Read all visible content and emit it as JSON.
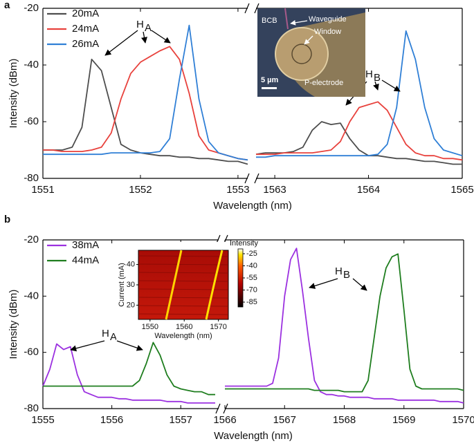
{
  "chart_data": [
    {
      "type": "line",
      "panel": "a",
      "xlabel": "Wavelength (nm)",
      "ylabel": "Intensity (dBm)",
      "ylim": [
        -80,
        -20
      ],
      "yticks": [
        -80,
        -60,
        -40,
        -20
      ],
      "x_segments": [
        {
          "xlim": [
            1551,
            1553.1
          ],
          "xticks": [
            1551,
            1552,
            1553
          ]
        },
        {
          "xlim": [
            1562.8,
            1565
          ],
          "xticks": [
            1563,
            1564,
            1565
          ]
        }
      ],
      "legend": "upper left",
      "x": [
        1551,
        1551.1,
        1551.2,
        1551.3,
        1551.4,
        1551.5,
        1551.6,
        1551.7,
        1551.8,
        1551.9,
        1552,
        1552.1,
        1552.2,
        1552.3,
        1552.4,
        1552.5,
        1552.6,
        1552.7,
        1552.8,
        1552.9,
        1553,
        1553.1,
        1562.8,
        1562.9,
        1563,
        1563.1,
        1563.2,
        1563.3,
        1563.4,
        1563.5,
        1563.6,
        1563.7,
        1563.8,
        1563.9,
        1564,
        1564.1,
        1564.2,
        1564.3,
        1564.4,
        1564.5,
        1564.6,
        1564.7,
        1564.8,
        1564.9,
        1565
      ],
      "series": [
        {
          "name": "20mA",
          "color": "#4d4d4d",
          "values": [
            -70,
            -70,
            -70,
            -69,
            -62,
            -38,
            -42,
            -55,
            -68,
            -70,
            -71,
            -71.5,
            -72,
            -72,
            -72.5,
            -72.5,
            -73,
            -73,
            -73.5,
            -74,
            -74,
            -75,
            -71.5,
            -71,
            -71,
            -71,
            -70.5,
            -69,
            -63,
            -60,
            -61,
            -60.5,
            -66,
            -70,
            -72,
            -72,
            -72.5,
            -73,
            -73,
            -73.5,
            -74,
            -74,
            -74.5,
            -75,
            -75
          ]
        },
        {
          "name": "24mA",
          "color": "#e8413c",
          "values": [
            -70,
            -70,
            -70.5,
            -70.5,
            -70.5,
            -70,
            -69,
            -64,
            -52,
            -43,
            -39,
            -37,
            -35,
            -33.5,
            -38,
            -50,
            -65,
            -70,
            -71,
            -72,
            -73,
            -73.5,
            -71.5,
            -71.5,
            -71.5,
            -71,
            -71,
            -71,
            -71,
            -70.5,
            -70,
            -67,
            -60,
            -55,
            -54,
            -53,
            -56,
            -62,
            -68,
            -71,
            -72,
            -72,
            -73,
            -73,
            -73.5
          ]
        },
        {
          "name": "26mA",
          "color": "#2f7fd6",
          "values": [
            -71.5,
            -71.5,
            -71.5,
            -71.5,
            -71.5,
            -71.5,
            -71.5,
            -71,
            -71,
            -71,
            -71,
            -71,
            -70.5,
            -66,
            -45,
            -26,
            -52,
            -67,
            -71,
            -72,
            -73,
            -73.5,
            -72.5,
            -72.5,
            -72,
            -72,
            -72,
            -72,
            -72,
            -72,
            -72,
            -72,
            -72,
            -72,
            -72,
            -71.5,
            -68,
            -55,
            -28,
            -38,
            -55,
            -66,
            -70,
            -71,
            -72
          ]
        }
      ],
      "annotations": [
        {
          "text": "H",
          "sub": "A"
        },
        {
          "text": "H",
          "sub": "B"
        }
      ],
      "inset": {
        "labels": [
          "BCB",
          "Waveguide",
          "Window",
          "5 µm",
          "P-electrode"
        ]
      }
    },
    {
      "type": "line",
      "panel": "b",
      "xlabel": "Wavelength (nm)",
      "ylabel": "Intensity (dBm)",
      "ylim": [
        -80,
        -20
      ],
      "yticks": [
        -80,
        -60,
        -40,
        -20
      ],
      "x_segments": [
        {
          "xlim": [
            1555,
            1557.55
          ],
          "xticks": [
            1555,
            1556,
            1557
          ]
        },
        {
          "xlim": [
            1566,
            1570
          ],
          "xticks": [
            1566,
            1567,
            1568,
            1569,
            1570
          ]
        }
      ],
      "legend": "upper left",
      "x": [
        1555,
        1555.1,
        1555.2,
        1555.3,
        1555.4,
        1555.5,
        1555.6,
        1555.7,
        1555.8,
        1555.9,
        1556,
        1556.1,
        1556.2,
        1556.3,
        1556.4,
        1556.5,
        1556.6,
        1556.7,
        1556.8,
        1556.9,
        1557,
        1557.1,
        1557.2,
        1557.3,
        1557.4,
        1557.5,
        1566,
        1566.1,
        1566.2,
        1566.3,
        1566.4,
        1566.5,
        1566.6,
        1566.7,
        1566.8,
        1566.9,
        1567,
        1567.1,
        1567.2,
        1567.3,
        1567.4,
        1567.5,
        1567.6,
        1567.7,
        1567.8,
        1567.9,
        1568,
        1568.1,
        1568.2,
        1568.3,
        1568.4,
        1568.5,
        1568.6,
        1568.7,
        1568.8,
        1568.9,
        1569,
        1569.1,
        1569.2,
        1569.3,
        1569.4,
        1569.5,
        1569.6,
        1569.7,
        1569.8,
        1569.9,
        1570
      ],
      "series": [
        {
          "name": "38mA",
          "color": "#9b30e0",
          "values": [
            -72,
            -66,
            -57,
            -59,
            -58,
            -68,
            -74,
            -75,
            -76,
            -76,
            -76,
            -76.5,
            -76.5,
            -77,
            -77,
            -77,
            -77,
            -77,
            -77.5,
            -77.5,
            -77.5,
            -78,
            -78,
            -78,
            -78,
            -78,
            -72,
            -72,
            -72,
            -72,
            -72,
            -72,
            -72,
            -72,
            -71,
            -62,
            -40,
            -27,
            -23,
            -38,
            -55,
            -70,
            -74,
            -75,
            -75,
            -75.5,
            -75.5,
            -76,
            -76,
            -76,
            -76,
            -76.5,
            -76.5,
            -76.5,
            -76.5,
            -77,
            -77,
            -77,
            -77,
            -77,
            -77,
            -77,
            -77.5,
            -77.5,
            -77.5,
            -77.5,
            -78
          ]
        },
        {
          "name": "44mA",
          "color": "#1e7d1e",
          "values": [
            -72,
            -72,
            -72,
            -72,
            -72,
            -72,
            -72,
            -72,
            -72,
            -72,
            -72,
            -72,
            -72,
            -72,
            -70,
            -64,
            -56.5,
            -61,
            -68,
            -72,
            -73,
            -73.5,
            -74,
            -74,
            -75,
            -75,
            -73,
            -73,
            -73,
            -73,
            -73,
            -73,
            -73,
            -73,
            -73,
            -73,
            -73,
            -73,
            -73,
            -73,
            -73,
            -73.5,
            -73.5,
            -73.5,
            -73.5,
            -73.5,
            -74,
            -74,
            -74,
            -74,
            -70,
            -55,
            -40,
            -30,
            -26,
            -25,
            -45,
            -66,
            -72,
            -73,
            -73,
            -73,
            -73,
            -73,
            -73,
            -73,
            -73.5
          ]
        }
      ],
      "annotations": [
        {
          "text": "H",
          "sub": "A"
        },
        {
          "text": "H",
          "sub": "B"
        }
      ],
      "inset": {
        "xlabel": "Wavelength (nm)",
        "ylabel": "Current (mA)",
        "xlim": [
          1546.6,
          1572.9
        ],
        "xticks": [
          1550,
          1560,
          1570
        ],
        "ylim": [
          13,
          47
        ],
        "yticks": [
          20,
          30,
          40
        ],
        "colorbar": {
          "label": "Intensity",
          "clim": [
            -91,
            -19
          ],
          "ticks": [
            -25,
            -40,
            -55,
            -70,
            -85
          ]
        }
      }
    }
  ]
}
